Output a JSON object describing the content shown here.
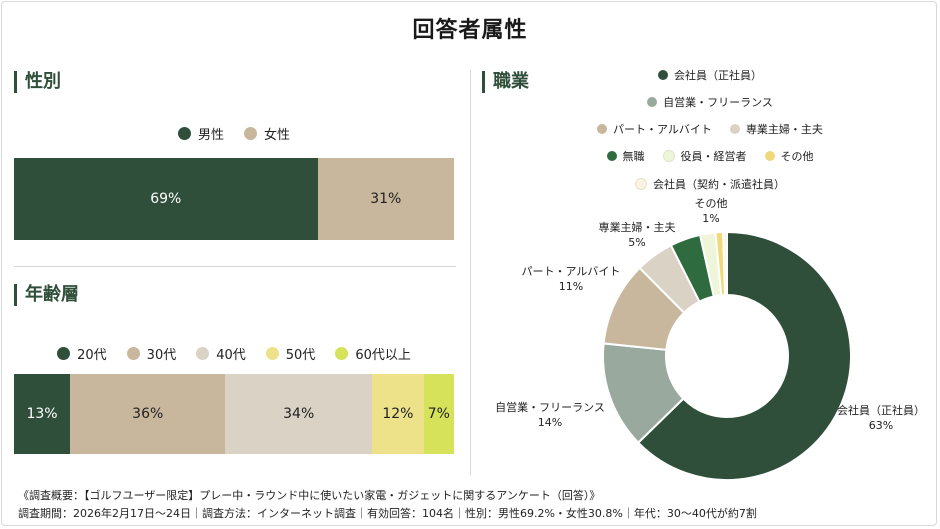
{
  "title": "回答者属性",
  "colors": {
    "dark_green": "#2f4f3a",
    "beige": "#c8b79d",
    "light_gray": "#d9d2c5",
    "yellow": "#ede28a",
    "lime": "#d6e35a",
    "sage": "#9aa99d",
    "tan": "#c8b79d",
    "warm_gray": "#d9d2c5",
    "forest": "#2e6b3e",
    "pale_green": "#eef5d9",
    "gold": "#f0d97a",
    "cream": "#fbf4e2"
  },
  "chart_data": [
    {
      "type": "bar",
      "orientation": "horizontal-stacked",
      "title": "性別",
      "legend_placement": "top",
      "series": [
        {
          "name": "男性",
          "value": 69,
          "label": "69%",
          "color": "#2f4f3a",
          "text_color": "#ffffff"
        },
        {
          "name": "女性",
          "value": 31,
          "label": "31%",
          "color": "#c8b79d",
          "text_color": "#222222"
        }
      ]
    },
    {
      "type": "bar",
      "orientation": "horizontal-stacked",
      "title": "年齢層",
      "legend_placement": "top",
      "series": [
        {
          "name": "20代",
          "value": 13,
          "label": "13%",
          "color": "#2f4f3a",
          "text_color": "#ffffff"
        },
        {
          "name": "30代",
          "value": 36,
          "label": "36%",
          "color": "#c8b79d",
          "text_color": "#222222"
        },
        {
          "name": "40代",
          "value": 34,
          "label": "34%",
          "color": "#d9d2c5",
          "text_color": "#222222"
        },
        {
          "name": "50代",
          "value": 12,
          "label": "12%",
          "color": "#ede28a",
          "text_color": "#222222"
        },
        {
          "name": "60代以上",
          "value": 7,
          "label": "7%",
          "color": "#d6e35a",
          "text_color": "#222222"
        }
      ]
    },
    {
      "type": "pie",
      "style": "donut",
      "title": "職業",
      "legend_placement": "top",
      "slices": [
        {
          "name": "会社員（正社員）",
          "value": 63,
          "label": "63%",
          "color": "#2f4f3a",
          "callout": true
        },
        {
          "name": "自営業・フリーランス",
          "value": 14,
          "label": "14%",
          "color": "#9aa99d",
          "callout": true
        },
        {
          "name": "パート・アルバイト",
          "value": 11,
          "label": "11%",
          "color": "#c8b79d",
          "callout": true
        },
        {
          "name": "専業主婦・主夫",
          "value": 5,
          "label": "5%",
          "color": "#d9d2c5",
          "callout": true
        },
        {
          "name": "無職",
          "value": 4,
          "label": "",
          "color": "#2e6b3e",
          "callout": false
        },
        {
          "name": "役員・経営者",
          "value": 2,
          "label": "",
          "color": "#eef5d9",
          "callout": false
        },
        {
          "name": "その他",
          "value": 1,
          "label": "1%",
          "color": "#f0d97a",
          "callout": true
        },
        {
          "name": "会社員（契約・派遣社員）",
          "value": 0.5,
          "label": "",
          "color": "#fbf4e2",
          "callout": false
        }
      ],
      "legend_rows": [
        [
          "会社員（正社員）"
        ],
        [
          "自営業・フリーランス"
        ],
        [
          "パート・アルバイト",
          "専業主婦・主夫"
        ],
        [
          "無職",
          "役員・経営者",
          "その他"
        ],
        [
          "会社員（契約・派遣社員）"
        ]
      ]
    }
  ],
  "footnotes": {
    "line1": "《調査概要：【ゴルフユーザー限定】プレー中・ラウンド中に使いたい家電・ガジェットに関するアンケート（回答）》",
    "line2": "調査期間：2026年2月17日〜24日｜調査方法：インターネット調査｜有効回答：104名｜性別：男性69.2%・女性30.8%｜年代：30〜40代が約7割"
  }
}
